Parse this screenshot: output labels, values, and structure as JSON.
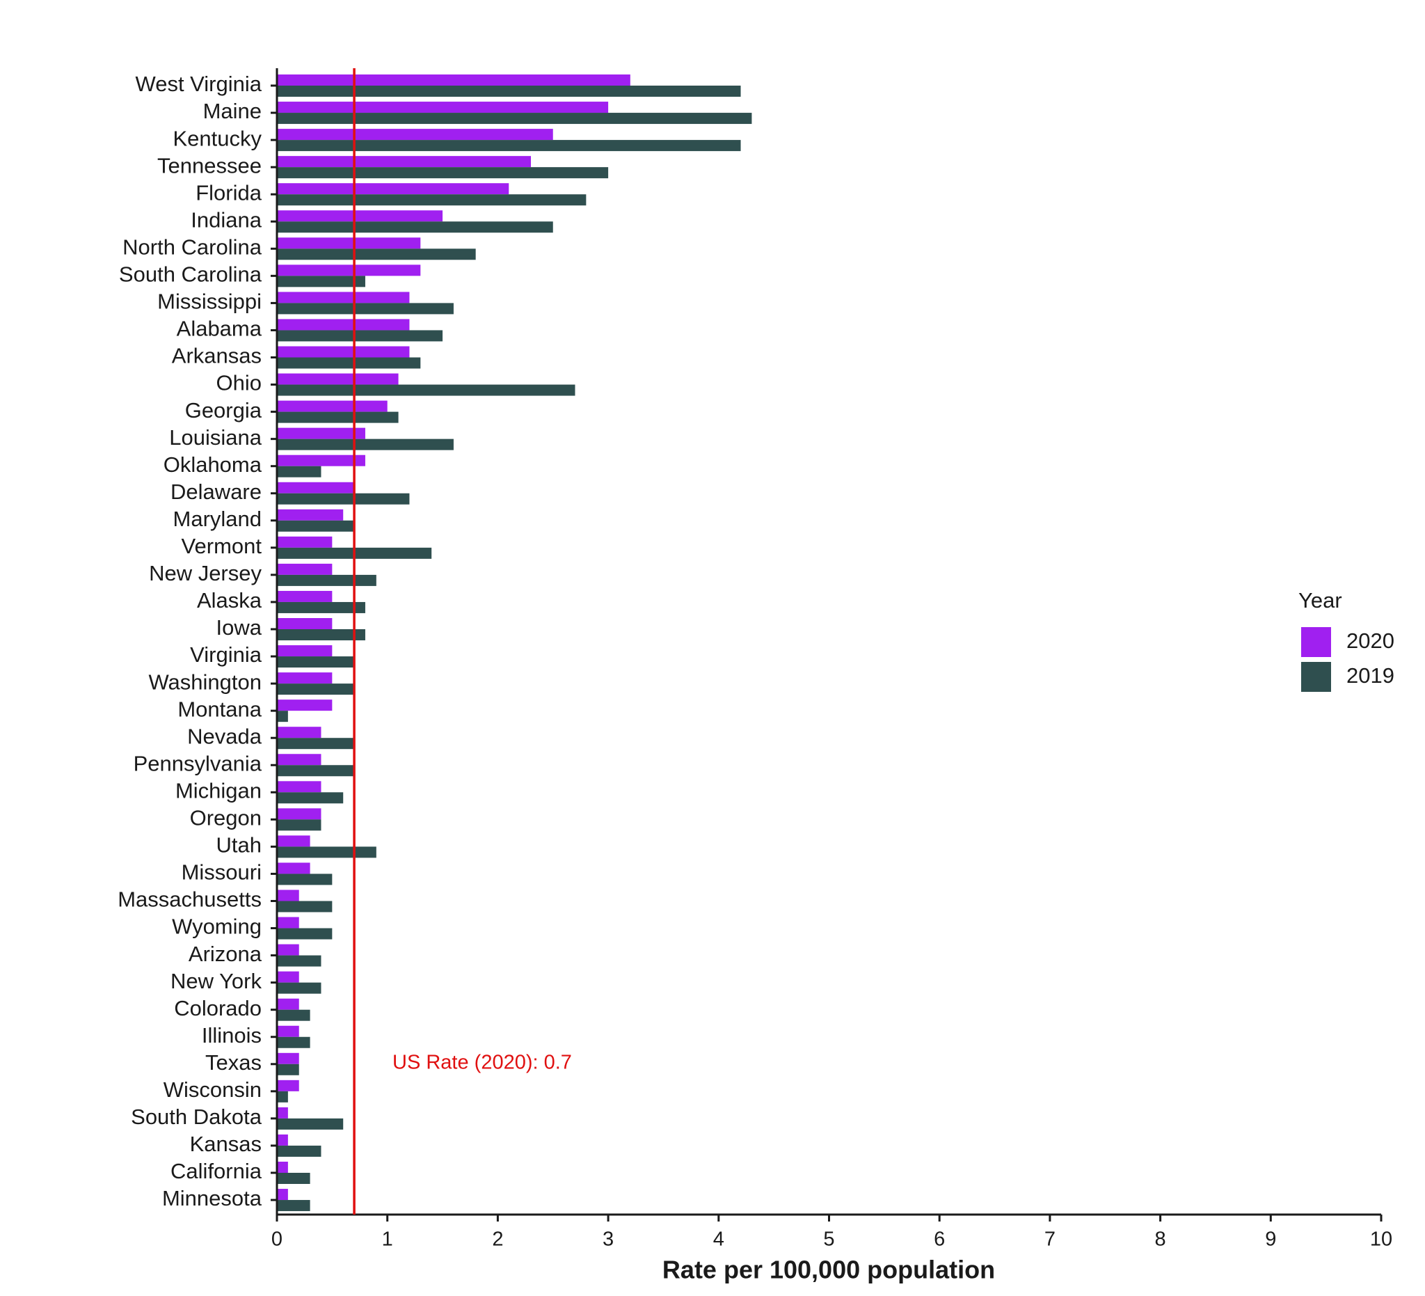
{
  "chart_data": {
    "type": "bar",
    "orientation": "horizontal",
    "x_label": "Rate per 100,000 population",
    "categories": [
      "West Virginia",
      "Maine",
      "Kentucky",
      "Tennessee",
      "Florida",
      "Indiana",
      "North Carolina",
      "South Carolina",
      "Mississippi",
      "Alabama",
      "Arkansas",
      "Ohio",
      "Georgia",
      "Louisiana",
      "Oklahoma",
      "Delaware",
      "Maryland",
      "Vermont",
      "New Jersey",
      "Alaska",
      "Iowa",
      "Virginia",
      "Washington",
      "Montana",
      "Nevada",
      "Pennsylvania",
      "Michigan",
      "Oregon",
      "Utah",
      "Missouri",
      "Massachusetts",
      "Wyoming",
      "Arizona",
      "New York",
      "Colorado",
      "Illinois",
      "Texas",
      "Wisconsin",
      "South Dakota",
      "Kansas",
      "California",
      "Minnesota"
    ],
    "series": [
      {
        "name": "2020",
        "color": "#a020f0",
        "values": [
          3.2,
          3.0,
          2.5,
          2.3,
          2.1,
          1.5,
          1.3,
          1.3,
          1.2,
          1.2,
          1.2,
          1.1,
          1.0,
          0.8,
          0.8,
          0.7,
          0.6,
          0.5,
          0.5,
          0.5,
          0.5,
          0.5,
          0.5,
          0.5,
          0.4,
          0.4,
          0.4,
          0.4,
          0.3,
          0.3,
          0.2,
          0.2,
          0.2,
          0.2,
          0.2,
          0.2,
          0.2,
          0.2,
          0.1,
          0.1,
          0.1,
          0.1
        ]
      },
      {
        "name": "2019",
        "color": "#2f4f4f",
        "values": [
          4.2,
          4.3,
          4.2,
          3.0,
          2.8,
          2.5,
          1.8,
          0.8,
          1.6,
          1.5,
          1.3,
          2.7,
          1.1,
          1.6,
          0.4,
          1.2,
          0.7,
          1.4,
          0.9,
          0.8,
          0.8,
          0.7,
          0.7,
          0.1,
          0.7,
          0.7,
          0.6,
          0.4,
          0.9,
          0.5,
          0.5,
          0.5,
          0.4,
          0.4,
          0.3,
          0.3,
          0.2,
          0.1,
          0.6,
          0.4,
          0.3,
          0.3
        ]
      }
    ],
    "xlim": [
      0,
      10
    ],
    "xticks": [
      0,
      1,
      2,
      3,
      4,
      5,
      6,
      7,
      8,
      9,
      10
    ],
    "reference_line": {
      "value": 0.7,
      "color": "#e01010",
      "label": "US Rate (2020): 0.7"
    },
    "legend": {
      "title": "Year",
      "position": "right"
    }
  }
}
